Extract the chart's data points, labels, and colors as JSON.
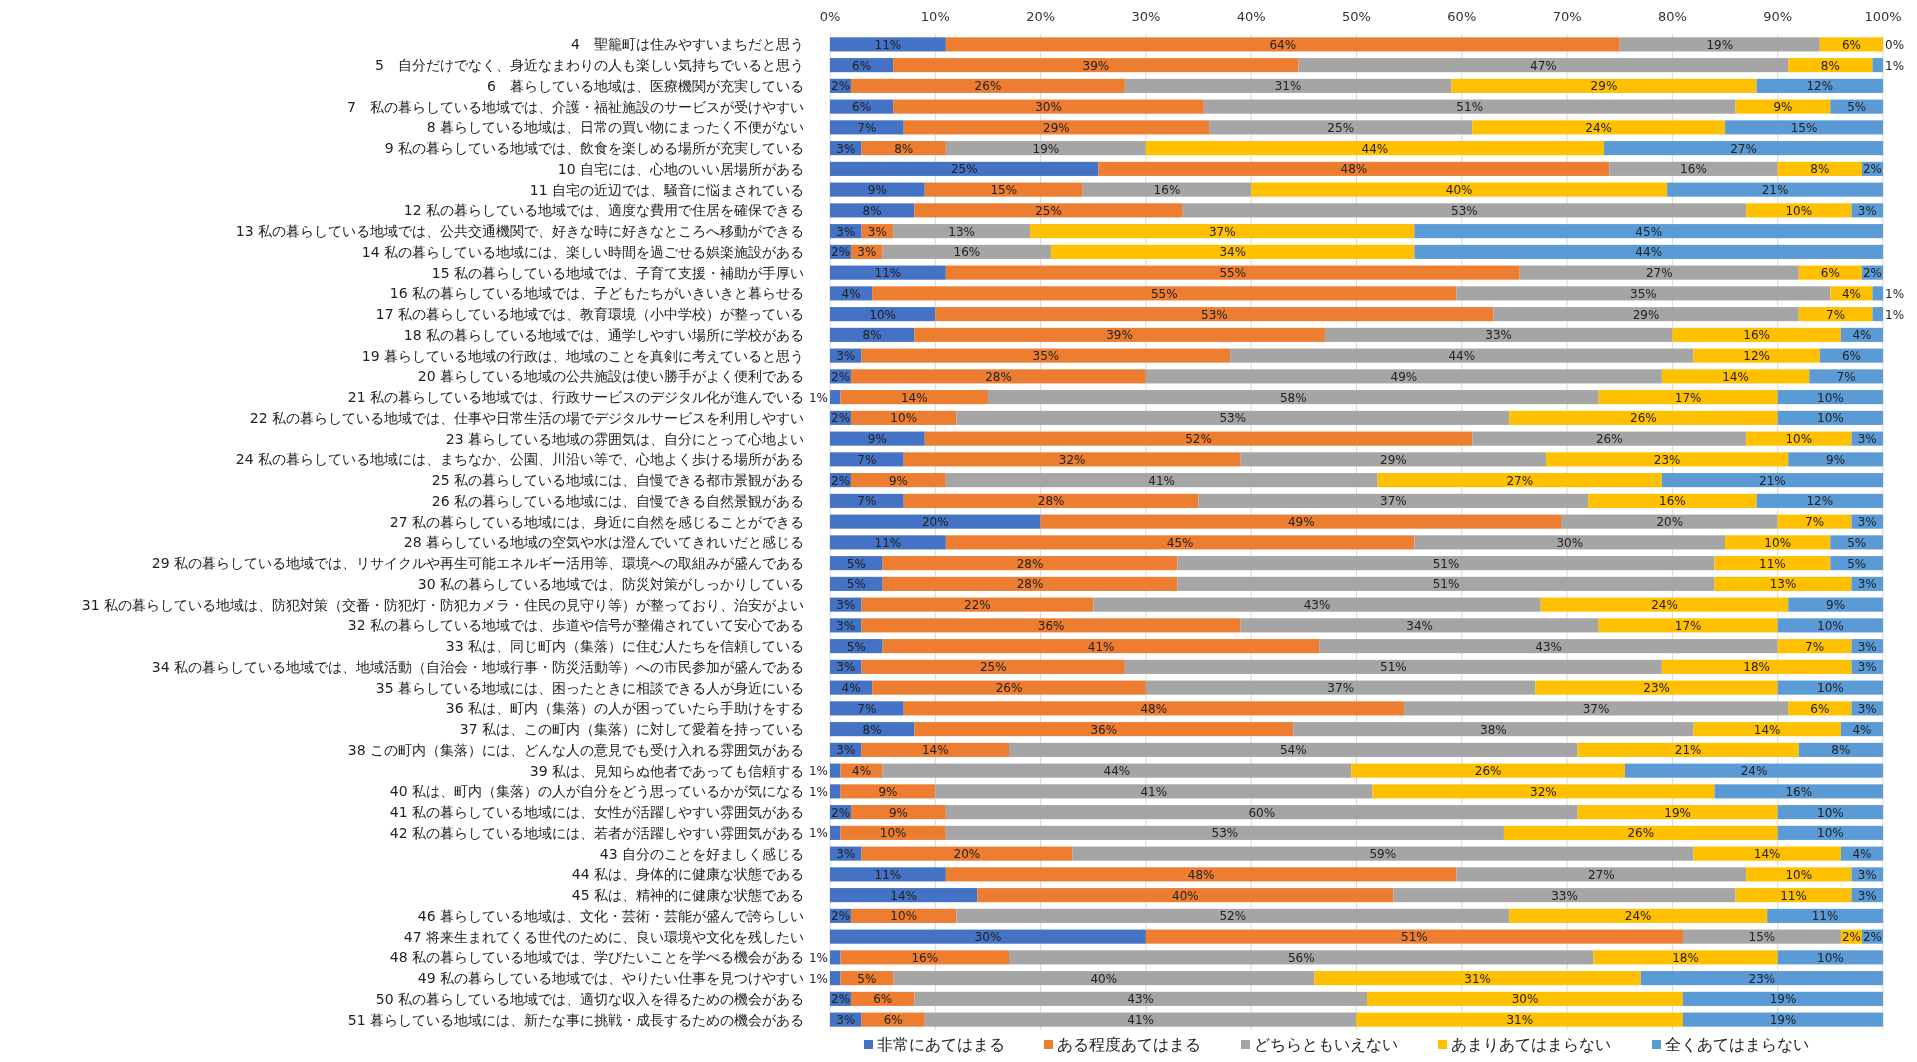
{
  "chart_data": {
    "type": "bar",
    "orientation": "horizontal",
    "stacked": true,
    "grid": "x",
    "legend": "bottom",
    "xlim": [
      0,
      100
    ],
    "xticks": [
      {
        "value": 0,
        "label": "0%"
      },
      {
        "value": 10,
        "label": "10%"
      },
      {
        "value": 20,
        "label": "20%"
      },
      {
        "value": 30,
        "label": "30%"
      },
      {
        "value": 40,
        "label": "40%"
      },
      {
        "value": 50,
        "label": "50%"
      },
      {
        "value": 60,
        "label": "60%"
      },
      {
        "value": 70,
        "label": "70%"
      },
      {
        "value": 80,
        "label": "80%"
      },
      {
        "value": 90,
        "label": "90%"
      },
      {
        "value": 100,
        "label": "100%"
      }
    ],
    "categories": [
      "4　聖籠町は住みやすいまちだと思う",
      "5　自分だけでなく、身近なまわりの人も楽しい気持ちでいると思う",
      "6　暮らしている地域は、医療機関が充実している",
      "7　私の暮らしている地域では、介護・福祉施設のサービスが受けやすい",
      "8 暮らしている地域は、日常の買い物にまったく不便がない",
      "9 私の暮らしている地域では、飲食を楽しめる場所が充実している",
      "10 自宅には、心地のいい居場所がある",
      "11 自宅の近辺では、騒音に悩まされている",
      "12 私の暮らしている地域では、適度な費用で住居を確保できる",
      "13 私の暮らしている地域では、公共交通機関で、好きな時に好きなところへ移動ができる",
      "14 私の暮らしている地域には、楽しい時間を過ごせる娯楽施設がある",
      "15 私の暮らしている地域では、子育て支援・補助が手厚い",
      "16 私の暮らしている地域では、子どもたちがいきいきと暮らせる",
      "17 私の暮らしている地域では、教育環境（小中学校）が整っている",
      "18 私の暮らしている地域では、通学しやすい場所に学校がある",
      "19 暮らしている地域の行政は、地域のことを真剣に考えていると思う",
      "20 暮らしている地域の公共施設は使い勝手がよく便利である",
      "21 私の暮らしている地域では、行政サービスのデジタル化が進んでいる",
      "22 私の暮らしている地域では、仕事や日常生活の場でデジタルサービスを利用しやすい",
      "23 暮らしている地域の雰囲気は、自分にとって心地よい",
      "24 私の暮らしている地域には、まちなか、公園、川沿い等で、心地よく歩ける場所がある",
      "25 私の暮らしている地域には、自慢できる都市景観がある",
      "26 私の暮らしている地域には、自慢できる自然景観がある",
      "27 私の暮らしている地域には、身近に自然を感じることができる",
      "28 暮らしている地域の空気や水は澄んでいてきれいだと感じる",
      "29 私の暮らしている地域では、リサイクルや再生可能エネルギー活用等、環境への取組みが盛んである",
      "30 私の暮らしている地域では、防災対策がしっかりしている",
      "31 私の暮らしている地域は、防犯対策（交番・防犯灯・防犯カメラ・住民の見守り等）が整っており、治安がよい",
      "32 私の暮らしている地域では、歩道や信号が整備されていて安心である",
      "33 私は、同じ町内（集落）に住む人たちを信頼している",
      "34 私の暮らしている地域では、地域活動（自治会・地域行事・防災活動等）への市民参加が盛んである",
      "35 暮らしている地域には、困ったときに相談できる人が身近にいる",
      "36 私は、町内（集落）の人が困っていたら手助けをする",
      "37 私は、この町内（集落）に対して愛着を持っている",
      "38 この町内（集落）には、どんな人の意見でも受け入れる雰囲気がある",
      "39 私は、見知らぬ他者であっても信頼する",
      "40 私は、町内（集落）の人が自分をどう思っているかが気になる",
      "41 私の暮らしている地域には、女性が活躍しやすい雰囲気がある",
      "42 私の暮らしている地域には、若者が活躍しやすい雰囲気がある",
      "43 自分のことを好ましく感じる",
      "44 私は、身体的に健康な状態である",
      "45 私は、精神的に健康な状態である",
      "46 暮らしている地域は、文化・芸術・芸能が盛んで誇らしい",
      "47 将来生まれてくる世代のために、良い環境や文化を残したい",
      "48 私の暮らしている地域では、学びたいことを学べる機会がある",
      "49 私の暮らしている地域では、やりたい仕事を見つけやすい",
      "50 私の暮らしている地域では、適切な収入を得るための機会がある",
      "51 暮らしている地域には、新たな事に挑戦・成長するための機会がある"
    ],
    "series": [
      {
        "name": "非常にあてはまる",
        "color": "#4472c4",
        "values": [
          11,
          6,
          2,
          6,
          7,
          3,
          25.5,
          9,
          8,
          3,
          2,
          11,
          4,
          10,
          8,
          3,
          2,
          1,
          2,
          9,
          7,
          2,
          7,
          20,
          11,
          5,
          5,
          3,
          3,
          5,
          3,
          4,
          7,
          8,
          3,
          1,
          1,
          2,
          1,
          3,
          11,
          14,
          2,
          30,
          1,
          1,
          2,
          3
        ],
        "value_labels": [
          "11%",
          "6%",
          "2%",
          "6%",
          "7%",
          "3%",
          "25%",
          "9%",
          "8%",
          "3%",
          "2%",
          "11%",
          "4%",
          "10%",
          "8%",
          "3%",
          "2%",
          "1%",
          "2%",
          "9%",
          "7%",
          "2%",
          "7%",
          "20%",
          "11%",
          "5%",
          "5%",
          "3%",
          "3%",
          "5%",
          "3%",
          "4%",
          "7%",
          "8%",
          "3%",
          "1%",
          "1%",
          "2%",
          "1%",
          "3%",
          "11%",
          "14%",
          "2%",
          "30%",
          "1%",
          "1%",
          "2%",
          "3%"
        ]
      },
      {
        "name": "ある程度あてはまる",
        "color": "#ed7d31",
        "values": [
          64,
          38.5,
          26,
          29.5,
          29,
          8,
          48.5,
          15,
          25.5,
          3,
          3,
          54.5,
          55.5,
          53,
          39,
          35,
          28,
          14,
          10,
          52,
          32,
          9,
          28,
          49.5,
          44.5,
          28,
          28,
          22,
          36,
          41.5,
          25,
          26,
          47.5,
          36,
          14,
          4,
          9,
          9,
          10,
          20,
          48.5,
          39.5,
          10,
          51,
          16,
          5,
          6,
          6
        ],
        "value_labels": [
          "64%",
          "39%",
          "26%",
          "30%",
          "29%",
          "8%",
          "48%",
          "15%",
          "25%",
          "3%",
          "3%",
          "55%",
          "55%",
          "53%",
          "39%",
          "35%",
          "28%",
          "14%",
          "10%",
          "52%",
          "32%",
          "9%",
          "28%",
          "49%",
          "45%",
          "28%",
          "28%",
          "22%",
          "36%",
          "41%",
          "25%",
          "26%",
          "48%",
          "36%",
          "14%",
          "4%",
          "9%",
          "9%",
          "10%",
          "20%",
          "48%",
          "40%",
          "10%",
          "51%",
          "16%",
          "5%",
          "6%",
          "6%"
        ]
      },
      {
        "name": "どちらともいえない",
        "color": "#a5a5a5",
        "values": [
          19,
          46.5,
          31,
          50.5,
          25,
          19,
          16,
          16,
          53.5,
          13,
          16,
          26.5,
          35.5,
          29,
          33,
          44,
          49,
          58,
          52.5,
          26,
          29,
          41,
          37,
          20.5,
          29.5,
          51,
          51,
          42.5,
          34,
          43.5,
          51,
          37,
          36.5,
          38,
          54,
          44.5,
          41.5,
          60,
          53,
          59,
          27.5,
          32.5,
          52.5,
          15,
          55.5,
          40,
          43,
          41
        ],
        "value_labels": [
          "19%",
          "47%",
          "31%",
          "51%",
          "25%",
          "19%",
          "16%",
          "16%",
          "53%",
          "13%",
          "16%",
          "27%",
          "35%",
          "29%",
          "33%",
          "44%",
          "49%",
          "58%",
          "53%",
          "26%",
          "29%",
          "41%",
          "37%",
          "20%",
          "30%",
          "51%",
          "51%",
          "43%",
          "34%",
          "43%",
          "51%",
          "37%",
          "37%",
          "38%",
          "54%",
          "44%",
          "41%",
          "60%",
          "53%",
          "59%",
          "27%",
          "33%",
          "52%",
          "15%",
          "56%",
          "40%",
          "43%",
          "41%"
        ]
      },
      {
        "name": "あまりあてはまらない",
        "color": "#ffc000",
        "values": [
          6,
          8,
          29,
          9,
          24,
          43.5,
          8,
          39.5,
          10,
          36.5,
          34.5,
          6,
          4,
          7,
          16,
          12,
          14,
          17,
          25.5,
          10,
          23,
          27,
          16,
          7,
          10,
          11,
          13,
          23.5,
          17,
          7,
          18,
          23,
          6,
          14,
          21,
          26,
          32.5,
          19,
          26,
          14,
          10,
          11,
          24.5,
          2,
          17.5,
          31,
          30,
          31
        ],
        "value_labels": [
          "6%",
          "8%",
          "29%",
          "9%",
          "24%",
          "44%",
          "8%",
          "40%",
          "10%",
          "37%",
          "34%",
          "6%",
          "4%",
          "7%",
          "16%",
          "12%",
          "14%",
          "17%",
          "26%",
          "10%",
          "23%",
          "27%",
          "16%",
          "7%",
          "10%",
          "11%",
          "13%",
          "24%",
          "17%",
          "7%",
          "18%",
          "23%",
          "6%",
          "14%",
          "21%",
          "26%",
          "32%",
          "19%",
          "26%",
          "14%",
          "10%",
          "11%",
          "24%",
          "2%",
          "18%",
          "31%",
          "30%",
          "31%"
        ]
      },
      {
        "name": "全くあてはまらない",
        "color": "#5b9bd5",
        "values": [
          0,
          1,
          12,
          5,
          15,
          26.5,
          2,
          20.5,
          3,
          44.5,
          44.5,
          2,
          1,
          1,
          4,
          6,
          7,
          10,
          10,
          3,
          9,
          21,
          12,
          3,
          5,
          5,
          3,
          9,
          10,
          3,
          3,
          10,
          3,
          4,
          8,
          24.5,
          16,
          10,
          10,
          4,
          3,
          3,
          11,
          2,
          10,
          23,
          19,
          19
        ],
        "value_labels": [
          "0%",
          "1%",
          "12%",
          "5%",
          "15%",
          "27%",
          "2%",
          "21%",
          "3%",
          "45%",
          "44%",
          "2%",
          "1%",
          "1%",
          "4%",
          "6%",
          "7%",
          "10%",
          "10%",
          "3%",
          "9%",
          "21%",
          "12%",
          "3%",
          "5%",
          "5%",
          "3%",
          "9%",
          "10%",
          "3%",
          "3%",
          "10%",
          "3%",
          "4%",
          "8%",
          "24%",
          "16%",
          "10%",
          "10%",
          "4%",
          "3%",
          "3%",
          "11%",
          "2%",
          "10%",
          "23%",
          "19%",
          "19%"
        ]
      }
    ]
  }
}
